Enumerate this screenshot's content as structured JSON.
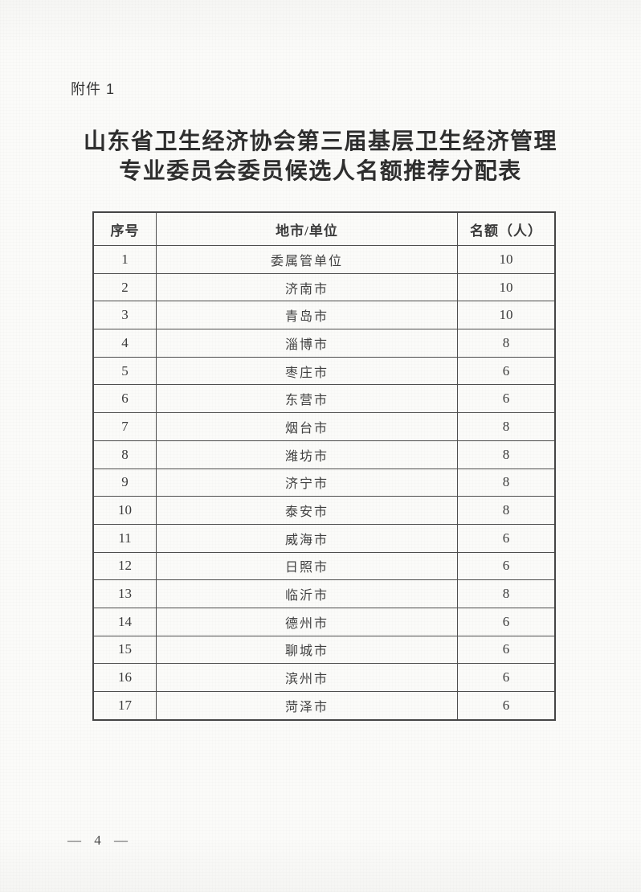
{
  "page": {
    "attachment_label": "附件 1",
    "title_line1": "山东省卫生经济协会第三届基层卫生经济管理",
    "title_line2": "专业委员会委员候选人名额推荐分配表",
    "page_number": "— 4 —"
  },
  "table": {
    "headers": [
      "序号",
      "地市/单位",
      "名额（人）"
    ],
    "rows": [
      {
        "no": "1",
        "unit": "委属管单位",
        "quota": "10"
      },
      {
        "no": "2",
        "unit": "济南市",
        "quota": "10"
      },
      {
        "no": "3",
        "unit": "青岛市",
        "quota": "10"
      },
      {
        "no": "4",
        "unit": "淄博市",
        "quota": "8"
      },
      {
        "no": "5",
        "unit": "枣庄市",
        "quota": "6"
      },
      {
        "no": "6",
        "unit": "东营市",
        "quota": "6"
      },
      {
        "no": "7",
        "unit": "烟台市",
        "quota": "8"
      },
      {
        "no": "8",
        "unit": "潍坊市",
        "quota": "8"
      },
      {
        "no": "9",
        "unit": "济宁市",
        "quota": "8"
      },
      {
        "no": "10",
        "unit": "泰安市",
        "quota": "8"
      },
      {
        "no": "11",
        "unit": "威海市",
        "quota": "6"
      },
      {
        "no": "12",
        "unit": "日照市",
        "quota": "6"
      },
      {
        "no": "13",
        "unit": "临沂市",
        "quota": "8"
      },
      {
        "no": "14",
        "unit": "德州市",
        "quota": "6"
      },
      {
        "no": "15",
        "unit": "聊城市",
        "quota": "6"
      },
      {
        "no": "16",
        "unit": "滨州市",
        "quota": "6"
      },
      {
        "no": "17",
        "unit": "菏泽市",
        "quota": "6"
      }
    ]
  },
  "colors": {
    "page_background": "#fbfbf9",
    "text": "#3b3b3b",
    "table_border": "#4e4e4e"
  }
}
